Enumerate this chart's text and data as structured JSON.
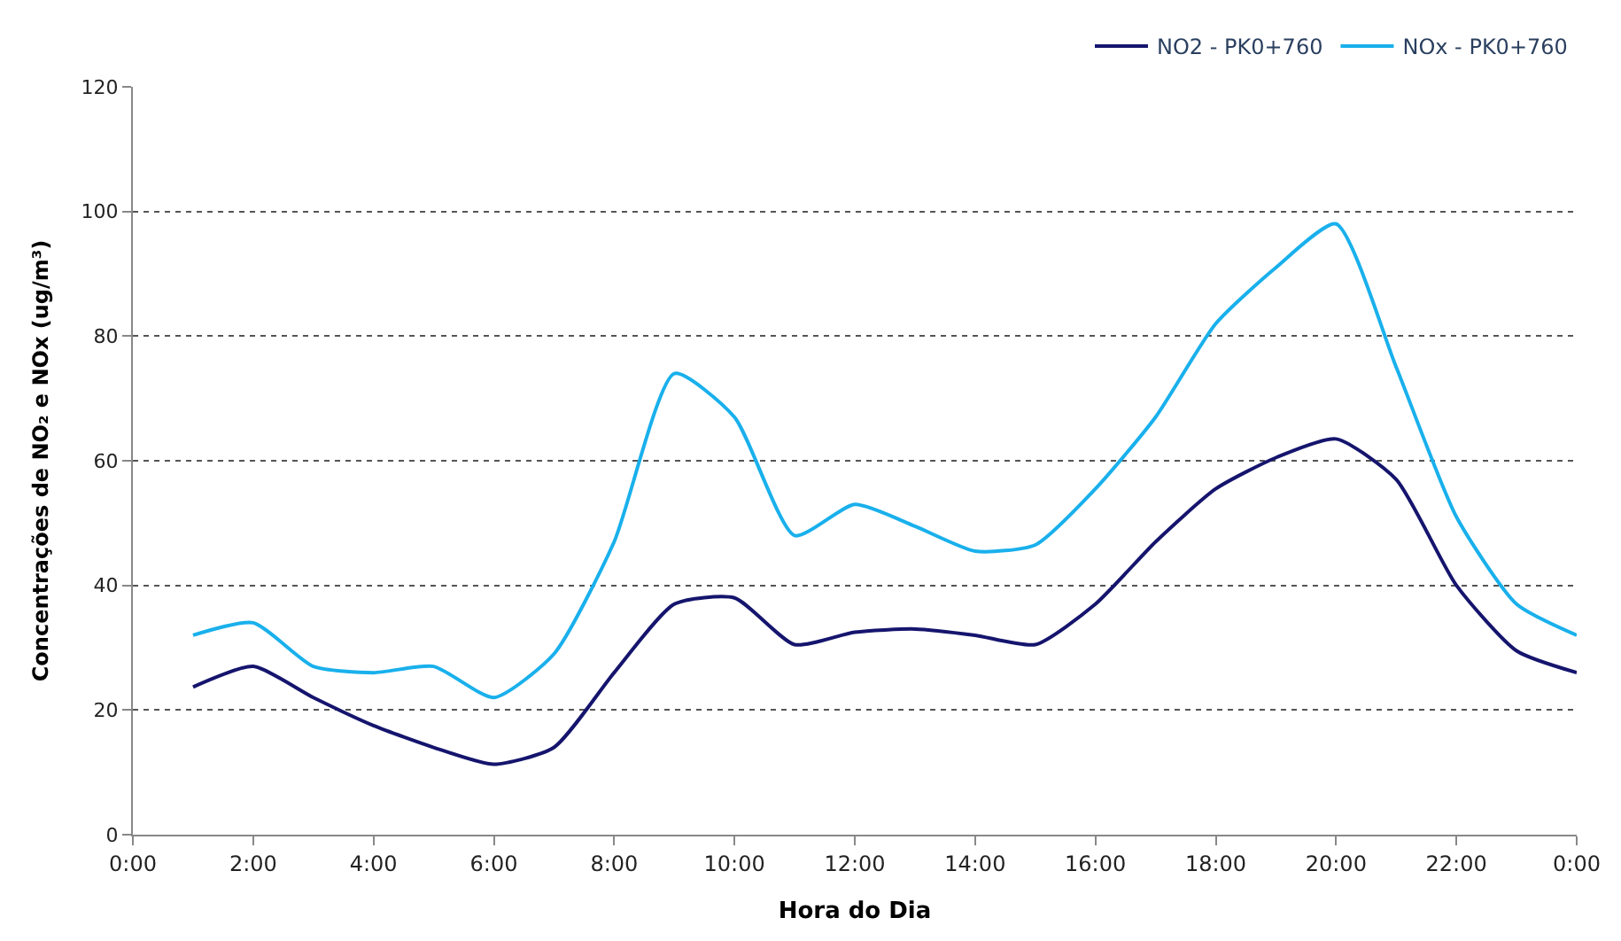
{
  "chart_data": {
    "type": "line",
    "xlabel": "Hora do Dia",
    "ylabel": "Concentrações de NO₂ e NOx (ug/m³)",
    "x": [
      1,
      2,
      3,
      4,
      5,
      6,
      7,
      8,
      9,
      10,
      11,
      12,
      13,
      14,
      15,
      16,
      17,
      18,
      19,
      20,
      21,
      22,
      23,
      24
    ],
    "series": [
      {
        "name": "NO2 - PK0+760",
        "color": "#15156e",
        "values": [
          23.7,
          27,
          22,
          17.5,
          14,
          11.3,
          14,
          26,
          37,
          38,
          30.5,
          32.5,
          33,
          32,
          30.5,
          37,
          47,
          55.5,
          60.5,
          63.5,
          57,
          40,
          29.5,
          26
        ]
      },
      {
        "name": "NOx - PK0+760",
        "color": "#19b0ec",
        "values": [
          32,
          34,
          27,
          26,
          27,
          22,
          29,
          47,
          74,
          67,
          48,
          53,
          49.5,
          45.5,
          46.5,
          55.5,
          67,
          82,
          91,
          98,
          75,
          51,
          37,
          32
        ]
      }
    ],
    "xlim": [
      0,
      24
    ],
    "xticks": [
      {
        "value": 0,
        "label": "0:00"
      },
      {
        "value": 2,
        "label": "2:00"
      },
      {
        "value": 4,
        "label": "4:00"
      },
      {
        "value": 6,
        "label": "6:00"
      },
      {
        "value": 8,
        "label": "8:00"
      },
      {
        "value": 10,
        "label": "10:00"
      },
      {
        "value": 12,
        "label": "12:00"
      },
      {
        "value": 14,
        "label": "14:00"
      },
      {
        "value": 16,
        "label": "16:00"
      },
      {
        "value": 18,
        "label": "18:00"
      },
      {
        "value": 20,
        "label": "20:00"
      },
      {
        "value": 22,
        "label": "22:00"
      },
      {
        "value": 24,
        "label": "0:00"
      }
    ],
    "ylim": [
      0,
      120
    ],
    "yticks": [
      0,
      20,
      40,
      60,
      80,
      100,
      120
    ],
    "grid": "y",
    "legend": "top right",
    "marker": "none",
    "line_style": "solid"
  }
}
